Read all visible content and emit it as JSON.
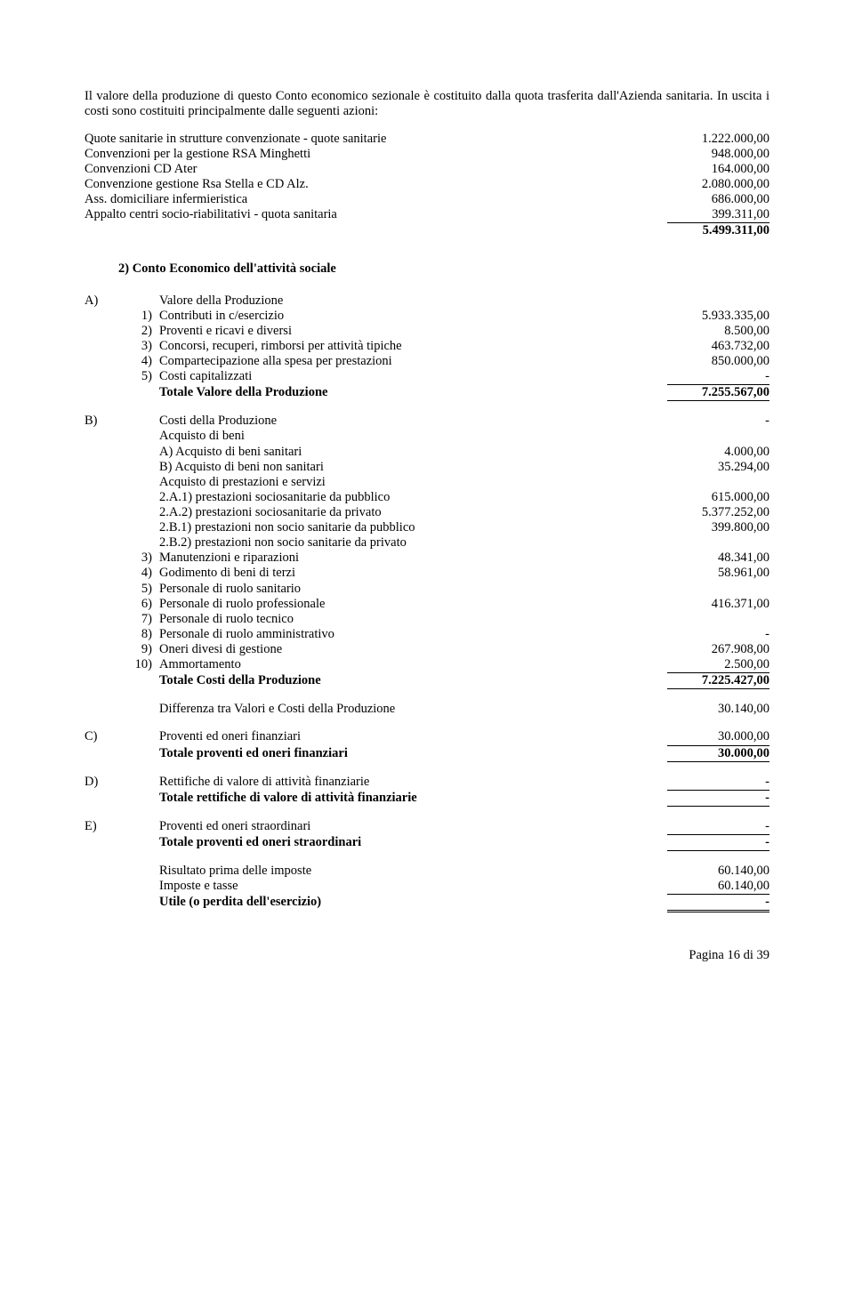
{
  "intro": {
    "p1": "Il valore della produzione di questo Conto economico sezionale è costituito dalla quota trasferita dall'Azienda sanitaria. In uscita i costi sono costituiti principalmente dalle seguenti azioni:"
  },
  "quote_list": [
    {
      "label": "Quote sanitarie in strutture convenzionate - quote sanitarie",
      "value": "1.222.000,00"
    },
    {
      "label": "Convenzioni per la gestione RSA Minghetti",
      "value": "948.000,00"
    },
    {
      "label": "Convenzioni CD Ater",
      "value": "164.000,00"
    },
    {
      "label": "Convenzione gestione Rsa Stella e CD Alz.",
      "value": "2.080.000,00"
    },
    {
      "label": "Ass. domiciliare infermieristica",
      "value": "686.000,00"
    },
    {
      "label": "Appalto centri socio-riabilitativi - quota sanitaria",
      "value": "399.311,00"
    }
  ],
  "quote_total": "5.499.311,00",
  "section2_title": "2)  Conto Economico dell'attività sociale",
  "A": {
    "marker": "A)",
    "title": "Valore della Produzione",
    "items": [
      {
        "n": "1)",
        "label": "Contributi in c/esercizio",
        "value": "5.933.335,00"
      },
      {
        "n": "2)",
        "label": "Proventi e ricavi e diversi",
        "value": "8.500,00"
      },
      {
        "n": "3)",
        "label": "Concorsi, recuperi, rimborsi per attività tipiche",
        "value": "463.732,00"
      },
      {
        "n": "4)",
        "label": "Compartecipazione alla spesa per prestazioni",
        "value": "850.000,00"
      },
      {
        "n": "5)",
        "label": "Costi capitalizzati",
        "value": "-"
      }
    ],
    "total_label": "Totale Valore della Produzione",
    "total_value": "7.255.567,00"
  },
  "B": {
    "marker": "B)",
    "title": "Costi della Produzione",
    "title_value": "-",
    "acq_beni": "Acquisto di beni",
    "acq_a": {
      "label": "A) Acquisto di beni sanitari",
      "value": "4.000,00"
    },
    "acq_b": {
      "label": "B) Acquisto di beni non sanitari",
      "value": "35.294,00"
    },
    "acq_prest": "Acquisto di prestazioni e servizi",
    "p_2a1": {
      "label": "2.A.1) prestazioni sociosanitarie da pubblico",
      "value": "615.000,00"
    },
    "p_2a2": {
      "label": "2.A.2) prestazioni sociosanitarie da privato",
      "value": "5.377.252,00"
    },
    "p_2b1": {
      "label": "2.B.1) prestazioni non socio sanitarie da pubblico",
      "value": "399.800,00"
    },
    "p_2b2": {
      "label": "2.B.2) prestazioni non socio sanitarie da privato",
      "value": ""
    },
    "items": [
      {
        "n": "3)",
        "label": "Manutenzioni e riparazioni",
        "value": "48.341,00"
      },
      {
        "n": "4)",
        "label": "Godimento di beni di terzi",
        "value": "58.961,00"
      },
      {
        "n": "5)",
        "label": "Personale di ruolo sanitario",
        "value": ""
      },
      {
        "n": "6)",
        "label": "Personale di ruolo professionale",
        "value": "416.371,00"
      },
      {
        "n": "7)",
        "label": "Personale di ruolo tecnico",
        "value": ""
      },
      {
        "n": "8)",
        "label": "Personale di ruolo amministrativo",
        "value": "-"
      },
      {
        "n": "9)",
        "label": "Oneri divesi di gestione",
        "value": "267.908,00"
      },
      {
        "n": "10)",
        "label": "Ammortamento",
        "value": "2.500,00"
      }
    ],
    "total_label": "Totale Costi della Produzione",
    "total_value": "7.225.427,00"
  },
  "diff": {
    "label": "Differenza tra Valori e Costi della Produzione",
    "value": "30.140,00"
  },
  "C": {
    "marker": "C)",
    "line": {
      "label": "Proventi ed oneri finanziari",
      "value": "30.000,00"
    },
    "total_label": "Totale proventi ed oneri finanziari",
    "total_value": "30.000,00"
  },
  "D": {
    "marker": "D)",
    "line": {
      "label": "Rettifiche di valore di attività finanziarie",
      "value": "-"
    },
    "total_label": "Totale rettifiche di valore di attività finanziarie",
    "total_value": "-"
  },
  "E": {
    "marker": "E)",
    "line": {
      "label": "Proventi ed oneri straordinari",
      "value": "-"
    },
    "total_label": "Totale proventi ed oneri straordinari",
    "total_value": "-"
  },
  "result": [
    {
      "label": "Risultato prima delle imposte",
      "value": "60.140,00"
    },
    {
      "label": "Imposte e tasse",
      "value": "60.140,00"
    }
  ],
  "utile": {
    "label": "Utile (o perdita dell'esercizio)",
    "value": "-"
  },
  "footer": "Pagina 16 di 39"
}
